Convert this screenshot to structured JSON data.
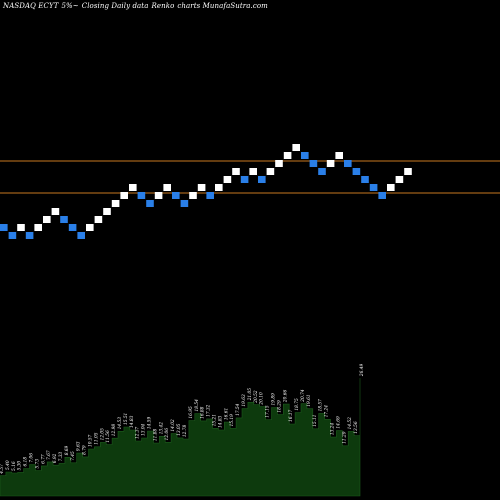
{
  "header": {
    "symbol": "NASDAQ ECYT",
    "change": "5%~",
    "caption": "Closing Daily data",
    "chart_kind": "Renko",
    "site": "charts MunafaSutra.com"
  },
  "colors": {
    "background": "#000000",
    "up_brick": "#ffffff",
    "down_brick": "#2a7fe8",
    "resistance_line": "#c87820",
    "volume_fill": "#0d3a0d",
    "volume_stroke": "#1c5a1c",
    "volume_label": "#ffffff"
  },
  "chart_data": [
    {
      "type": "renko",
      "title": "NASDAQ ECYT 5%~",
      "ylim": [
        0,
        50
      ],
      "bricks": [
        {
          "dir": "down",
          "level": 31
        },
        {
          "dir": "down",
          "level": 30
        },
        {
          "dir": "up",
          "level": 31
        },
        {
          "dir": "down",
          "level": 30
        },
        {
          "dir": "up",
          "level": 31
        },
        {
          "dir": "up",
          "level": 32
        },
        {
          "dir": "up",
          "level": 33
        },
        {
          "dir": "down",
          "level": 32
        },
        {
          "dir": "down",
          "level": 31
        },
        {
          "dir": "down",
          "level": 30
        },
        {
          "dir": "up",
          "level": 31
        },
        {
          "dir": "up",
          "level": 32
        },
        {
          "dir": "up",
          "level": 33
        },
        {
          "dir": "up",
          "level": 34
        },
        {
          "dir": "up",
          "level": 35
        },
        {
          "dir": "up",
          "level": 36
        },
        {
          "dir": "down",
          "level": 35
        },
        {
          "dir": "down",
          "level": 34
        },
        {
          "dir": "up",
          "level": 35
        },
        {
          "dir": "up",
          "level": 36
        },
        {
          "dir": "down",
          "level": 35
        },
        {
          "dir": "down",
          "level": 34
        },
        {
          "dir": "up",
          "level": 35
        },
        {
          "dir": "up",
          "level": 36
        },
        {
          "dir": "down",
          "level": 35
        },
        {
          "dir": "up",
          "level": 36
        },
        {
          "dir": "up",
          "level": 37
        },
        {
          "dir": "up",
          "level": 38
        },
        {
          "dir": "down",
          "level": 37
        },
        {
          "dir": "up",
          "level": 38
        },
        {
          "dir": "down",
          "level": 37
        },
        {
          "dir": "up",
          "level": 38
        },
        {
          "dir": "up",
          "level": 39
        },
        {
          "dir": "up",
          "level": 40
        },
        {
          "dir": "up",
          "level": 41
        },
        {
          "dir": "down",
          "level": 40
        },
        {
          "dir": "down",
          "level": 39
        },
        {
          "dir": "down",
          "level": 38
        },
        {
          "dir": "up",
          "level": 39
        },
        {
          "dir": "up",
          "level": 40
        },
        {
          "dir": "down",
          "level": 39
        },
        {
          "dir": "down",
          "level": 38
        },
        {
          "dir": "down",
          "level": 37
        },
        {
          "dir": "down",
          "level": 36
        },
        {
          "dir": "down",
          "level": 35
        },
        {
          "dir": "up",
          "level": 36
        },
        {
          "dir": "up",
          "level": 37
        },
        {
          "dir": "up",
          "level": 38
        }
      ],
      "resistance_levels": [
        40,
        36
      ]
    },
    {
      "type": "bar",
      "series": [
        {
          "values": [
            4.57,
            5.4,
            5.16,
            5.3,
            6.18,
            7.06,
            5.73,
            6.77,
            7.67,
            6.92,
            7.33,
            8.69,
            7.45,
            9.63,
            8.79,
            10.57,
            11.05,
            12.05,
            11.56,
            12.98,
            14.53,
            15.51,
            14.83,
            12.37,
            13.04,
            14.59,
            11.88,
            13.42,
            12.06,
            14.02,
            13.05,
            12.78,
            16.95,
            18.54,
            16.88,
            17.32,
            15.21,
            14.83,
            16.61,
            15.19,
            17.54,
            19.63,
            21.05,
            20.52,
            20.1,
            17.15,
            19.89,
            18.29,
            20.66,
            16.17,
            18.75,
            20.74,
            19.61,
            15.11,
            18.57,
            17.24,
            13.24,
            14.69,
            11.29,
            14.52,
            13.56,
            26.49
          ]
        }
      ]
    }
  ]
}
